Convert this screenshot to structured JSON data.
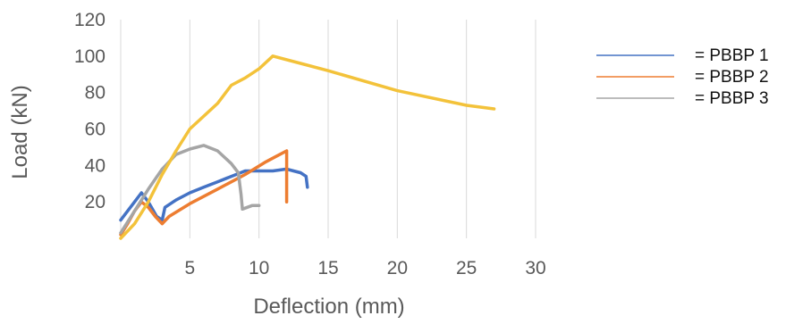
{
  "chart_data": {
    "type": "line",
    "title": "",
    "xlabel": "Deflection (mm)",
    "ylabel": "Load (kN)",
    "xlim": [
      0,
      30
    ],
    "ylim": [
      0,
      120
    ],
    "xticks": [
      5,
      10,
      15,
      20,
      25,
      30
    ],
    "yticks": [
      20,
      40,
      60,
      80,
      100,
      120
    ],
    "grid": "vertical",
    "legend_position": "right",
    "series": [
      {
        "name": "= PBBP 1",
        "color": "#4472c4",
        "points": [
          [
            0,
            10
          ],
          [
            0.5,
            15
          ],
          [
            1,
            20
          ],
          [
            1.5,
            25
          ],
          [
            2,
            20
          ],
          [
            2.6,
            12
          ],
          [
            3,
            10
          ],
          [
            3.2,
            17
          ],
          [
            4,
            21
          ],
          [
            5,
            25
          ],
          [
            6,
            28
          ],
          [
            7,
            31
          ],
          [
            8,
            34
          ],
          [
            9,
            37
          ],
          [
            10,
            37
          ],
          [
            11,
            37
          ],
          [
            12,
            38
          ],
          [
            12.5,
            37
          ],
          [
            13,
            36
          ],
          [
            13.4,
            34
          ],
          [
            13.5,
            28
          ]
        ]
      },
      {
        "name": "= PBBP 2",
        "color": "#ed7d31",
        "points": [
          [
            0,
            2
          ],
          [
            0.5,
            8
          ],
          [
            1,
            15
          ],
          [
            1.5,
            20
          ],
          [
            2,
            17
          ],
          [
            2.5,
            12
          ],
          [
            3,
            8
          ],
          [
            3.5,
            12
          ],
          [
            5,
            19
          ],
          [
            7,
            27
          ],
          [
            9,
            35
          ],
          [
            10.5,
            42
          ],
          [
            11,
            44
          ],
          [
            11.5,
            46
          ],
          [
            12,
            48
          ],
          [
            12,
            20
          ]
        ]
      },
      {
        "name": "= PBBP 3",
        "color": "#a5a5a5",
        "points": [
          [
            0,
            3
          ],
          [
            1,
            15
          ],
          [
            2,
            27
          ],
          [
            3,
            38
          ],
          [
            4,
            46
          ],
          [
            5,
            49
          ],
          [
            6,
            51
          ],
          [
            7,
            48
          ],
          [
            8,
            41
          ],
          [
            8.5,
            36
          ],
          [
            8.7,
            24
          ],
          [
            8.8,
            16
          ],
          [
            9.5,
            18
          ],
          [
            10,
            18
          ]
        ]
      },
      {
        "name": "",
        "color": "#f3c23a",
        "points": [
          [
            0,
            0
          ],
          [
            1,
            8
          ],
          [
            2,
            20
          ],
          [
            3,
            35
          ],
          [
            4,
            48
          ],
          [
            5,
            60
          ],
          [
            7,
            74
          ],
          [
            8,
            84
          ],
          [
            9,
            88
          ],
          [
            10,
            93
          ],
          [
            11,
            100
          ],
          [
            13,
            96
          ],
          [
            15,
            92
          ],
          [
            20,
            81
          ],
          [
            25,
            73
          ],
          [
            27,
            71
          ]
        ]
      }
    ]
  }
}
